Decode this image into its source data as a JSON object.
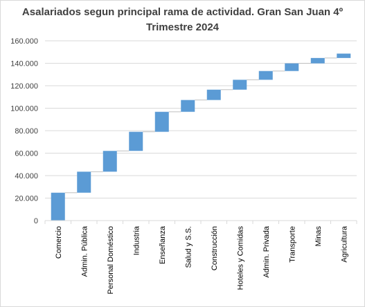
{
  "chart_data": {
    "type": "bar",
    "subtype": "waterfall",
    "title_line1": "Asalariados segun principal rama de actividad. Gran San Juan 4º",
    "title_line2": "Trimestre 2024",
    "categories": [
      "Comercio",
      "Admin. Pública",
      "Personal Doméstico",
      "Industria",
      "Enseñanza",
      "Salud y S.S.",
      "Construcción",
      "Hoteles y  Comidas",
      "Admin. Privada",
      "Transporte",
      "Minas",
      "Agricultura"
    ],
    "values": [
      24800,
      18700,
      18500,
      17000,
      17800,
      10500,
      9200,
      8800,
      7800,
      6800,
      4800,
      3900
    ],
    "ylim": [
      0,
      160000
    ],
    "yticks": [
      0,
      20000,
      40000,
      60000,
      80000,
      100000,
      120000,
      140000,
      160000
    ],
    "ytick_labels": [
      "0",
      "20.000",
      "40.000",
      "60.000",
      "80.000",
      "100.000",
      "120.000",
      "140.000",
      "160.000"
    ],
    "grid": true,
    "legend": "none",
    "bar_color": "#5b9bd5",
    "grid_color": "#d9d9d9",
    "connector_color": "#bfbfbf"
  }
}
